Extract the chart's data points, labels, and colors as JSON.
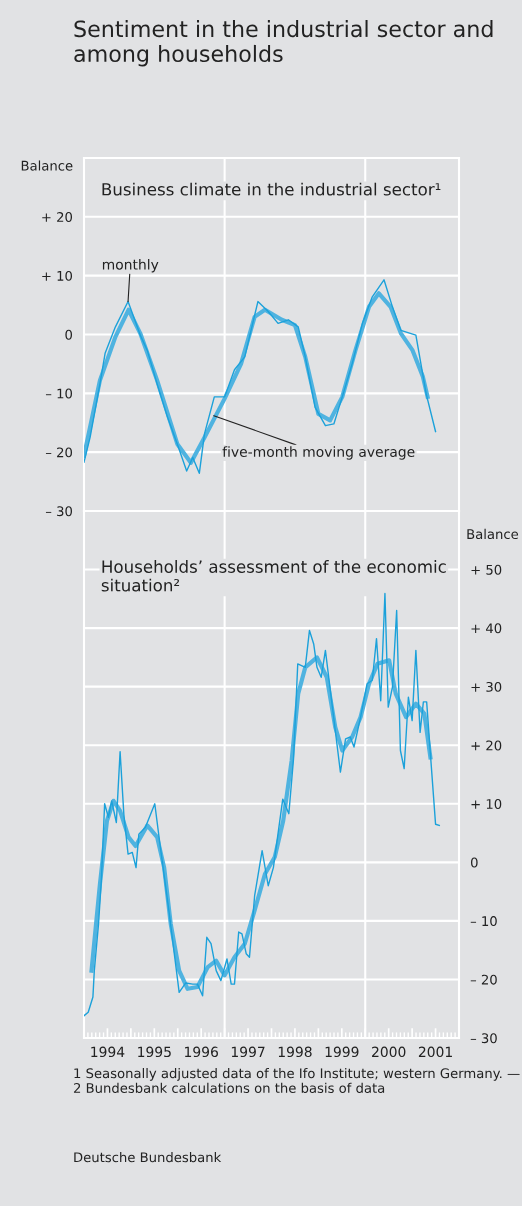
{
  "chart_data": [
    {
      "type": "line",
      "title": "Sentiment in the industrial sector and among households",
      "subtitle": "Business climate in the industrial sector¹",
      "ylabel": "Balance",
      "xlim": [
        1994,
        2002
      ],
      "ylim": [
        -30,
        30
      ],
      "xticks": [
        {
          "value": 1997,
          "label": null
        },
        {
          "value": 2000,
          "label": null
        }
      ],
      "yticks": [
        {
          "value": -30,
          "label": "– 30"
        },
        {
          "value": -20,
          "label": "– 20"
        },
        {
          "value": -10,
          "label": "– 10"
        },
        0,
        {
          "value": 10,
          "label": "+ 10"
        },
        {
          "value": 20,
          "label": "+ 20"
        }
      ],
      "grid": true,
      "tick_labels": "y",
      "series": [
        {
          "color": "#1ba1da",
          "x": [
            1994.0,
            1994.13,
            1994.34,
            1994.45,
            1994.67,
            1994.94,
            1995.2,
            1995.35,
            1995.56,
            1995.78,
            1995.99,
            1996.19,
            1996.32,
            1996.46,
            1996.57,
            1996.78,
            1997.0,
            1997.21,
            1997.43,
            1997.71,
            1997.93,
            1998.14,
            1998.36,
            1998.57,
            1998.72,
            1998.93,
            1999.15,
            1999.33,
            1999.51,
            1999.72,
            1999.94,
            2000.15,
            2000.4,
            2000.58,
            2000.76,
            2001.08,
            2001.3,
            2001.5
          ],
          "values": [
            -21.7,
            -17.5,
            -8.4,
            -3.2,
            1.3,
            5.6,
            -0.1,
            -2.7,
            -8.4,
            -14,
            -18.6,
            -23.2,
            -20.9,
            -23.6,
            -16.9,
            -10.6,
            -10.6,
            -6,
            -3.8,
            5.6,
            3.9,
            1.9,
            2.5,
            1.3,
            -3.8,
            -12.4,
            -15.5,
            -15.2,
            -10.6,
            -5,
            1.9,
            6.4,
            9.3,
            4.7,
            0.7,
            -0.1,
            -10.1,
            -16.5
          ]
        },
        {
          "color": "#4fb3e0",
          "x": [
            1994.0,
            1994.34,
            1994.67,
            1994.95,
            1995.2,
            1995.56,
            1995.99,
            1996.28,
            1996.57,
            1997.0,
            1997.35,
            1997.64,
            1997.86,
            1998.22,
            1998.5,
            1998.72,
            1999.0,
            1999.25,
            1999.51,
            1999.79,
            2000.08,
            2000.29,
            2000.54,
            2000.76,
            2001.01,
            2001.23,
            2001.33
          ],
          "values": [
            -20.6,
            -7.8,
            -0.4,
            4.2,
            0.2,
            -7.8,
            -18.6,
            -21.8,
            -17.5,
            -10.9,
            -5,
            3,
            4.2,
            2.5,
            1.6,
            -3.8,
            -13.5,
            -14.6,
            -10.6,
            -2.7,
            4.7,
            7,
            4.7,
            0.2,
            -2.7,
            -7.2,
            -10.6
          ]
        }
      ],
      "annotations": [
        {
          "text": "monthly",
          "x": 1994.94,
          "y": 5.6
        },
        {
          "text": "five-month moving average",
          "x": 1996.77,
          "y": -13.8
        }
      ]
    },
    {
      "type": "line",
      "title": "Households’ assessment of the economic situation²",
      "ylabel": "Balance",
      "xlim": [
        1994,
        2002
      ],
      "ylim": [
        -30,
        60
      ],
      "xticks": [
        {
          "value": 1994.5,
          "label": "1994"
        },
        {
          "value": 1995,
          "label": null
        },
        {
          "value": 1995.5,
          "label": "1995"
        },
        {
          "value": 1996,
          "label": null
        },
        {
          "value": 1996.5,
          "label": "1996"
        },
        {
          "value": 1997,
          "label": null
        },
        {
          "value": 1997.5,
          "label": "1997"
        },
        {
          "value": 1998,
          "label": null
        },
        {
          "value": 1998.5,
          "label": "1998"
        },
        {
          "value": 1999,
          "label": null
        },
        {
          "value": 1999.5,
          "label": "1999"
        },
        {
          "value": 2000,
          "label": null
        },
        {
          "value": 2000.5,
          "label": "2000"
        },
        {
          "value": 2001,
          "label": null
        },
        {
          "value": 2001.5,
          "label": "2001"
        }
      ],
      "yticks": [
        {
          "value": -30,
          "label": "– 30"
        },
        {
          "value": -20,
          "label": "– 20"
        },
        {
          "value": -10,
          "label": "– 10"
        },
        0,
        {
          "value": 10,
          "label": "+ 10"
        },
        {
          "value": 20,
          "label": "+ 20"
        },
        {
          "value": 30,
          "label": "+ 30"
        },
        {
          "value": 40,
          "label": "+ 40"
        },
        {
          "value": 50,
          "label": "+ 50"
        }
      ],
      "grid": "y",
      "ref_lines": [
        {
          "axis": "x",
          "value": 1997,
          "color": "#ffffff"
        },
        {
          "axis": "x",
          "value": 2000,
          "color": "#ffffff"
        }
      ],
      "series": [
        {
          "color": "#1ba1da",
          "x": [
            1994.0,
            1994.09,
            1994.19,
            1994.22,
            1994.31,
            1994.37,
            1994.44,
            1994.52,
            1994.59,
            1994.69,
            1994.77,
            1994.85,
            1994.94,
            1995.03,
            1995.11,
            1995.17,
            1995.31,
            1995.51,
            1995.62,
            1995.81,
            1996.03,
            1996.17,
            1996.32,
            1996.42,
            1996.53,
            1996.62,
            1996.71,
            1996.82,
            1996.92,
            1997.05,
            1997.14,
            1997.21,
            1997.3,
            1997.37,
            1997.46,
            1997.53,
            1997.64,
            1997.8,
            1997.93,
            1998.04,
            1998.24,
            1998.37,
            1998.47,
            1998.56,
            1998.72,
            1998.81,
            1998.9,
            1998.97,
            1999.06,
            1999.15,
            1999.29,
            1999.47,
            1999.58,
            1999.68,
            1999.76,
            1999.9,
            2000.04,
            2000.15,
            2000.24,
            2000.33,
            2000.42,
            2000.49,
            2000.58,
            2000.67,
            2000.75,
            2000.83,
            2000.92,
            2001.0,
            2001.08,
            2001.17,
            2001.24,
            2001.31,
            2001.39,
            2001.5,
            2001.58
          ],
          "values": [
            -26.2,
            -25.6,
            -23,
            -18.5,
            -10.5,
            -3.1,
            10,
            7.7,
            10.5,
            6.8,
            18.9,
            8.2,
            1.4,
            1.7,
            -0.9,
            4.8,
            6,
            10,
            3.1,
            -8.2,
            -22.2,
            -20.6,
            -20.8,
            -20.8,
            -22.8,
            -12.8,
            -13.9,
            -18.5,
            -20.2,
            -16.5,
            -20.8,
            -20.8,
            -11.9,
            -12.2,
            -15.6,
            -16.2,
            -5.7,
            2,
            -4,
            -0.9,
            10.8,
            8.3,
            17.7,
            33.9,
            33.3,
            39.6,
            37.3,
            33.3,
            31.6,
            36.2,
            27.1,
            15.4,
            21.1,
            21.4,
            19.7,
            24.8,
            30.5,
            31.1,
            38.2,
            27.6,
            45.9,
            26.5,
            29.9,
            43,
            19.1,
            16,
            28.2,
            24.2,
            36.2,
            22.2,
            27.4,
            27.4,
            18.5,
            6.5,
            6.3
          ]
        },
        {
          "color": "#4fb3e0",
          "x": [
            1994.16,
            1994.34,
            1994.49,
            1994.63,
            1994.77,
            1994.95,
            1995.1,
            1995.35,
            1995.56,
            1995.71,
            1995.85,
            1996.03,
            1996.21,
            1996.42,
            1996.64,
            1996.82,
            1997.0,
            1997.21,
            1997.43,
            1997.64,
            1997.86,
            1998.07,
            1998.25,
            1998.43,
            1998.57,
            1998.72,
            1998.97,
            1999.18,
            1999.36,
            1999.51,
            1999.72,
            1999.9,
            2000.08,
            2000.26,
            2000.51,
            2000.65,
            2000.87,
            2001.08,
            2001.26,
            2001.39
          ],
          "values": [
            -18.5,
            -3.7,
            7.1,
            10.5,
            8.8,
            4.3,
            2.8,
            6.3,
            4.3,
            -0.9,
            -10.5,
            -18.5,
            -21.6,
            -21.3,
            -17.9,
            -16.8,
            -19.3,
            -16.2,
            -13.9,
            -8.2,
            -2,
            0.9,
            7.1,
            17.4,
            28.8,
            33.3,
            35,
            31.6,
            23.1,
            19.1,
            21.4,
            24.8,
            30.5,
            33.9,
            34.5,
            28.8,
            24.8,
            27.1,
            25.4,
            17.9
          ]
        }
      ],
      "annotations": [
        "1 Seasonally adjusted data of the Ifo Institute; western Germany. — 2 Bundesbank calculations on the basis of data",
        "Deutsche Bundesbank"
      ]
    }
  ]
}
